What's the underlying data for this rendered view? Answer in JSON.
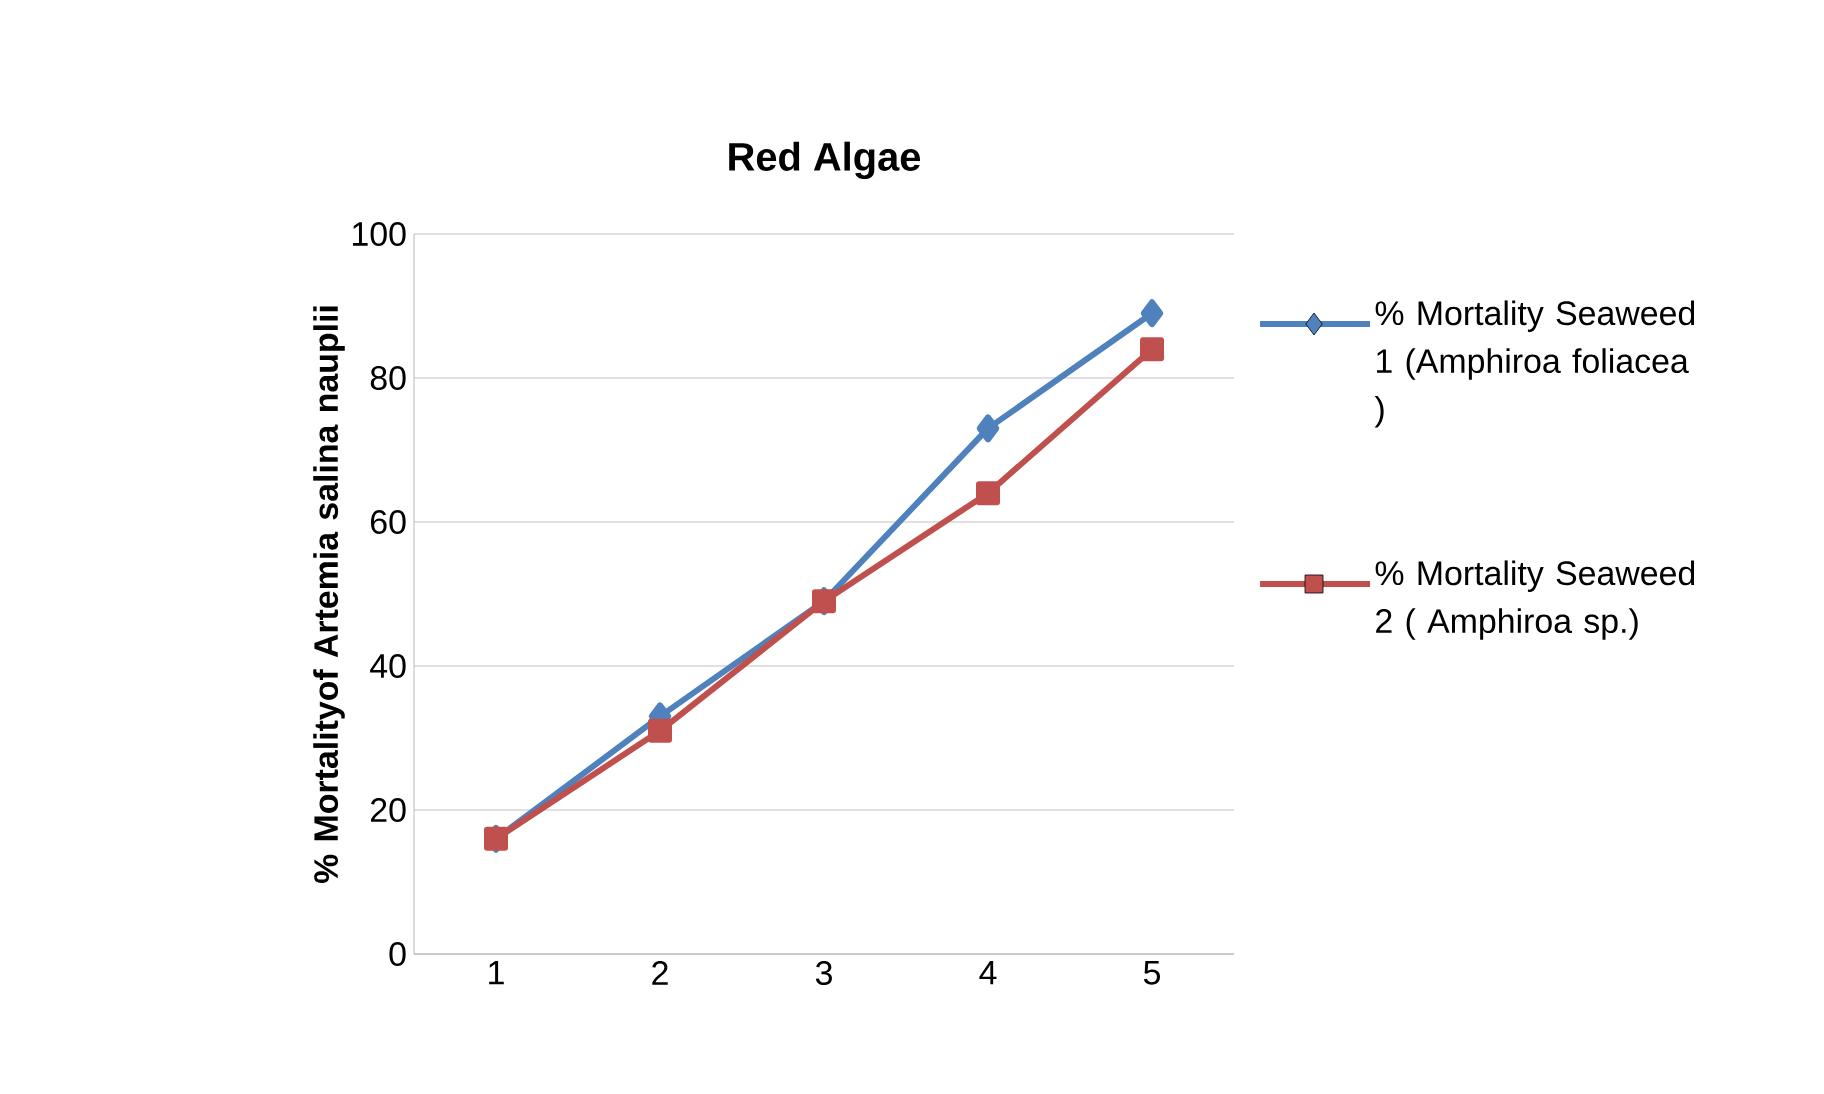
{
  "chart_data": {
    "type": "line",
    "title": "Red Algae",
    "ylabel": "% Mortalityof Artemia salina nauplii",
    "categories": [
      "1",
      "2",
      "3",
      "4",
      "5"
    ],
    "series": [
      {
        "name": "% Mortality Seaweed 1 (Amphiroa foliacea )",
        "color": "#4f81bd",
        "marker": "diamond",
        "values": [
          16,
          33,
          49,
          73,
          89
        ]
      },
      {
        "name": "% Mortality Seaweed 2 ( Amphiroa sp.)",
        "color": "#c0504d",
        "marker": "square",
        "values": [
          16,
          31,
          49,
          64,
          84
        ]
      }
    ],
    "ylim": [
      0,
      100
    ],
    "yticks": [
      0,
      20,
      40,
      60,
      80,
      100
    ],
    "grid": "y",
    "legend": "right"
  }
}
